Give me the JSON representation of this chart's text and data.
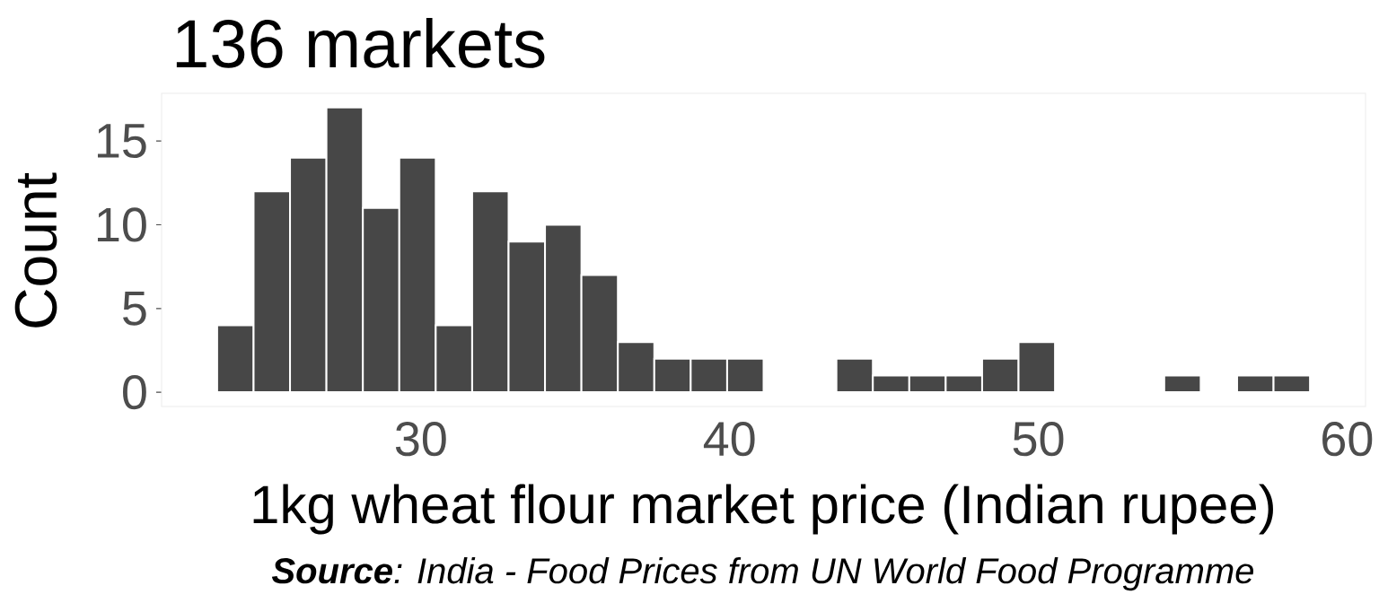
{
  "chart_data": {
    "type": "histogram",
    "title": "136 markets",
    "xlabel": "1kg wheat flour market price (Indian rupee)",
    "ylabel": "Count",
    "annotations": [
      "**Source**: India - Food Prices from UN World Food Programme"
    ],
    "bins": [
      23.4,
      24.58,
      25.76,
      26.94,
      28.12,
      29.3,
      30.48,
      31.66,
      32.84,
      34.02,
      35.2,
      36.38,
      37.56,
      38.74,
      39.92,
      41.1,
      42.28,
      43.46,
      44.64,
      45.82,
      47.0,
      48.18,
      49.36,
      50.54,
      51.72,
      52.9,
      54.08,
      55.26,
      56.44,
      57.62,
      58.8
    ],
    "values": [
      4,
      12,
      14,
      17,
      11,
      14,
      4,
      12,
      9,
      10,
      7,
      3,
      2,
      2,
      2,
      0,
      0,
      2,
      1,
      1,
      1,
      2,
      3,
      0,
      0,
      0,
      1,
      0,
      1,
      1
    ],
    "color": "#474747",
    "xlim": [
      21.6,
      60.6
    ],
    "ylim": [
      -0.85,
      17.85
    ],
    "xticks": [
      30,
      40,
      50,
      60
    ],
    "yticks": [
      0,
      5,
      10,
      15
    ]
  }
}
